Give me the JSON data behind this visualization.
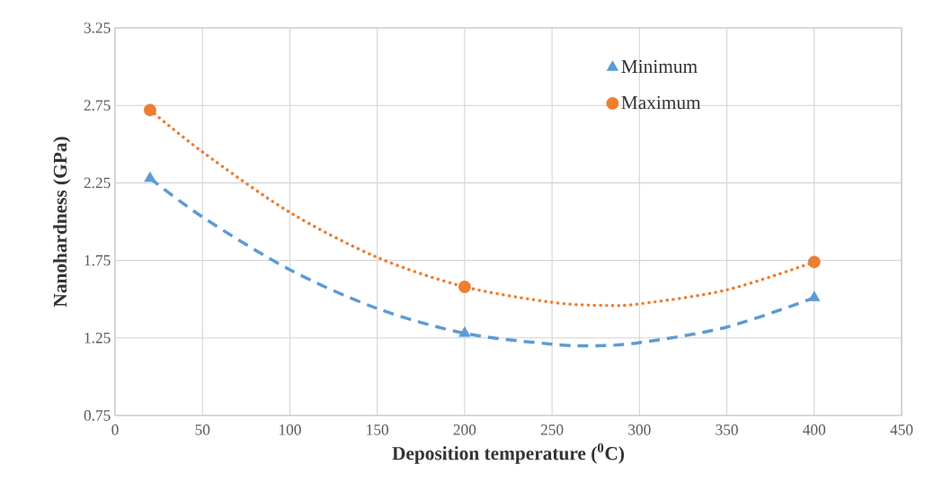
{
  "chart_data": {
    "type": "scatter",
    "xlabel": "Deposition temperature ($^{0}$C)",
    "ylabel": "Nanohardness (GPa)",
    "xlim": [
      0,
      450
    ],
    "xticks": [
      0,
      50,
      100,
      150,
      200,
      250,
      300,
      350,
      400,
      450
    ],
    "ylim": [
      0.75,
      3.25
    ],
    "yticks": [
      0.75,
      1.25,
      1.75,
      2.25,
      2.75,
      3.25
    ],
    "grid": true,
    "legend": "top right",
    "series": [
      {
        "name": "Minimum",
        "marker": "triangle",
        "color": "#5b9bd5",
        "x": [
          20,
          200,
          400
        ],
        "values": [
          2.28,
          1.28,
          1.51
        ]
      },
      {
        "name": "Maximum",
        "marker": "circle",
        "color": "#ed7d31",
        "x": [
          20,
          200,
          400
        ],
        "values": [
          2.72,
          1.58,
          1.74
        ]
      },
      {
        "type": "line",
        "line_style": "dashed",
        "color": "#5b9bd5",
        "x": [
          20,
          50,
          100,
          150,
          200,
          250,
          275,
          300,
          350,
          400
        ],
        "values": [
          2.28,
          2.03,
          1.69,
          1.44,
          1.28,
          1.21,
          1.2,
          1.22,
          1.32,
          1.51
        ]
      },
      {
        "type": "line",
        "line_style": "dotted",
        "color": "#ed7d31",
        "x": [
          20,
          50,
          100,
          150,
          200,
          250,
          280,
          300,
          350,
          400
        ],
        "values": [
          2.72,
          2.45,
          2.06,
          1.77,
          1.58,
          1.48,
          1.46,
          1.47,
          1.56,
          1.74
        ]
      }
    ]
  }
}
